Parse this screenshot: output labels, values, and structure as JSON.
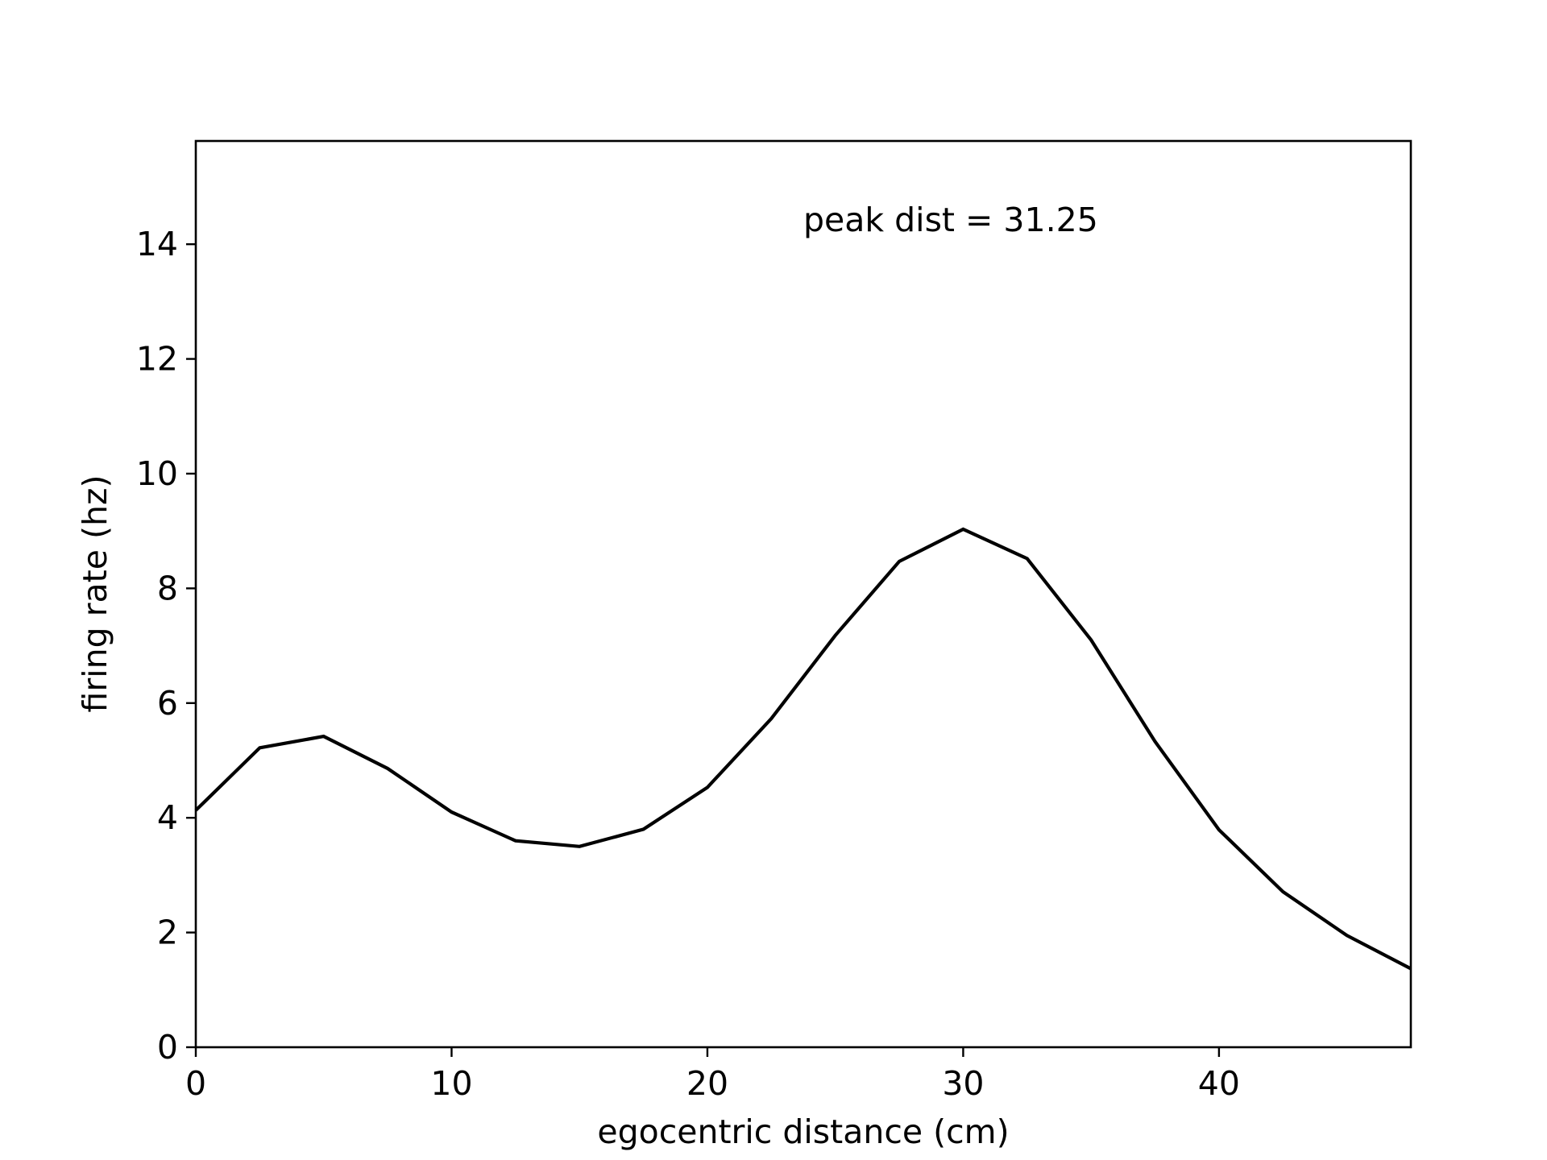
{
  "chart_data": {
    "type": "line",
    "title": "",
    "xlabel": "egocentric distance (cm)",
    "ylabel": "firing rate (hz)",
    "xlim": [
      0,
      47.5
    ],
    "ylim": [
      0,
      15.8
    ],
    "xticks": [
      0,
      10,
      20,
      30,
      40
    ],
    "yticks": [
      0,
      2,
      4,
      6,
      8,
      10,
      12,
      14
    ],
    "xtick_labels": [
      "0",
      "10",
      "20",
      "30",
      "40"
    ],
    "ytick_labels": [
      "0",
      "2",
      "4",
      "6",
      "8",
      "10",
      "12",
      "14"
    ],
    "grid": false,
    "legend": "none",
    "annotation": "peak dist = 31.25",
    "line_color": "#000000",
    "series": [
      {
        "x": [
          0,
          2.5,
          5,
          7.5,
          10,
          12.5,
          15,
          17.5,
          20,
          22.5,
          25,
          27.5,
          30,
          32.5,
          35,
          37.5,
          40,
          42.5,
          45,
          47.5
        ],
        "values": [
          4.13,
          5.22,
          5.42,
          4.86,
          4.1,
          3.6,
          3.5,
          3.8,
          4.53,
          5.73,
          7.18,
          8.47,
          9.03,
          8.52,
          7.1,
          5.33,
          3.79,
          2.71,
          1.95,
          1.37
        ]
      }
    ]
  }
}
